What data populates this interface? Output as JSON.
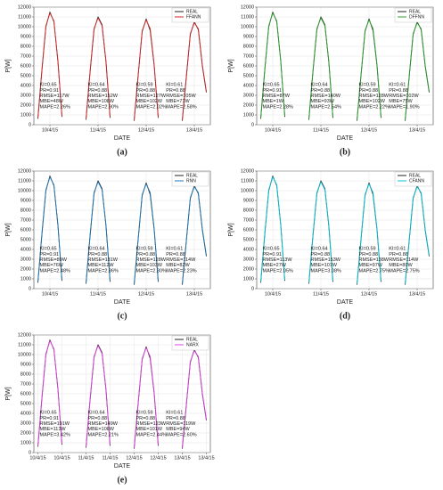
{
  "chart_data": [
    {
      "type": "line",
      "panel_label": "(a)",
      "x_label": "DATE",
      "y_label": "P[W]",
      "x": [
        6,
        8,
        10,
        12,
        14,
        16,
        18,
        21,
        30,
        32,
        34,
        36,
        38,
        40,
        42,
        45,
        54,
        56,
        58,
        60,
        62,
        64,
        66,
        69,
        78,
        80,
        82,
        84,
        86,
        88,
        90
      ],
      "series": [
        {
          "name": "REAL",
          "color": "#222222",
          "values": [
            600,
            5500,
            10000,
            11500,
            10500,
            6500,
            800,
            null,
            500,
            5300,
            9700,
            11000,
            10200,
            6300,
            700,
            null,
            400,
            5000,
            9500,
            10800,
            9600,
            6000,
            700,
            null,
            400,
            4800,
            9200,
            10500,
            9700,
            6000,
            3300
          ]
        },
        {
          "name": "FFANN",
          "color": "#d62728",
          "values": [
            700,
            5600,
            10100,
            11400,
            10600,
            6400,
            900,
            null,
            600,
            5400,
            9800,
            10900,
            10100,
            6400,
            800,
            null,
            500,
            5100,
            9600,
            10700,
            9800,
            6100,
            800,
            null,
            500,
            4900,
            9300,
            10400,
            9800,
            6100,
            3400
          ]
        }
      ],
      "xlim": [
        4,
        92
      ],
      "ylim": [
        0,
        12000
      ],
      "xticks": [
        {
          "value": 12,
          "label": "10/4/15"
        },
        {
          "value": 36,
          "label": "11/4/15"
        },
        {
          "value": 60,
          "label": "12/4/15"
        },
        {
          "value": 84,
          "label": "13/4/15"
        }
      ],
      "yticks": [
        0,
        1000,
        2000,
        3000,
        4000,
        5000,
        6000,
        7000,
        8000,
        9000,
        10000,
        11000,
        12000
      ],
      "grid": true,
      "legend": "upper right",
      "annotations": [
        [
          "KI=0.65",
          "PR=0.91",
          "RMSE=117W",
          "MBE=48W",
          "MAPE=2.26%"
        ],
        [
          "KI=0.64",
          "PR=0.88",
          "RMSE=152W",
          "MBE=108W",
          "MAPE=2.90%"
        ],
        [
          "KI=0.59",
          "PR=0.88",
          "RMSE=127W",
          "MBE=102W",
          "MAPE=2.02%"
        ],
        [
          "KI=0.61",
          "PR=0.88",
          "RMSE=105W",
          "MBE=71W",
          "MAPE=2.58%"
        ]
      ]
    },
    {
      "type": "line",
      "panel_label": "(b)",
      "x_label": "DATE",
      "y_label": "P[W]",
      "x": [
        6,
        8,
        10,
        12,
        14,
        16,
        18,
        21,
        30,
        32,
        34,
        36,
        38,
        40,
        42,
        45,
        54,
        56,
        58,
        60,
        62,
        64,
        66,
        69,
        78,
        80,
        82,
        84,
        86,
        88,
        90
      ],
      "series": [
        {
          "name": "REAL",
          "color": "#222222",
          "values": [
            600,
            5500,
            10000,
            11500,
            10500,
            6500,
            800,
            null,
            500,
            5300,
            9700,
            11000,
            10200,
            6300,
            700,
            null,
            400,
            5000,
            9500,
            10800,
            9600,
            6000,
            700,
            null,
            400,
            4800,
            9200,
            10500,
            9700,
            6000,
            3300
          ]
        },
        {
          "name": "DFFNN",
          "color": "#2ca02c",
          "values": [
            700,
            5600,
            10100,
            11400,
            10600,
            6400,
            900,
            null,
            600,
            5400,
            9800,
            10900,
            10100,
            6400,
            800,
            null,
            500,
            5100,
            9600,
            10700,
            9800,
            6100,
            800,
            null,
            500,
            4900,
            9300,
            10400,
            9800,
            6100,
            3400
          ]
        }
      ],
      "xlim": [
        4,
        92
      ],
      "ylim": [
        0,
        12000
      ],
      "xticks": [
        {
          "value": 12,
          "label": "10/4/15"
        },
        {
          "value": 36,
          "label": "11/4/15"
        },
        {
          "value": 60,
          "label": "12/4/15"
        },
        {
          "value": 84,
          "label": "13/4/15"
        }
      ],
      "yticks": [
        0,
        1000,
        2000,
        3000,
        4000,
        5000,
        6000,
        7000,
        8000,
        9000,
        10000,
        11000,
        12000
      ],
      "grid": true,
      "legend": "upper right",
      "annotations": [
        [
          "KI=0.65",
          "PR=0.91",
          "RMSE=87W",
          "MBE=1W",
          "MAPE=2.28%"
        ],
        [
          "KI=0.64",
          "PR=0.88",
          "RMSE=140W",
          "MBE=93W",
          "MAPE=2.54%"
        ],
        [
          "KI=0.59",
          "PR=0.88",
          "RMSE=128W",
          "MBE=102W",
          "MAPE=2.22%"
        ],
        [
          "KI=0.61",
          "PR=0.88",
          "RMSE=102W",
          "MBE=75W",
          "MAPE=1.90%"
        ]
      ]
    },
    {
      "type": "line",
      "panel_label": "(c)",
      "x_label": "DATE",
      "y_label": "P[W]",
      "x": [
        6,
        8,
        10,
        12,
        14,
        16,
        18,
        21,
        30,
        32,
        34,
        36,
        38,
        40,
        42,
        45,
        54,
        56,
        58,
        60,
        62,
        64,
        66,
        69,
        78,
        80,
        82,
        84,
        86,
        88,
        90
      ],
      "series": [
        {
          "name": "REAL",
          "color": "#222222",
          "values": [
            600,
            5500,
            10000,
            11500,
            10500,
            6500,
            800,
            null,
            500,
            5300,
            9700,
            11000,
            10200,
            6300,
            700,
            null,
            400,
            5000,
            9500,
            10800,
            9600,
            6000,
            700,
            null,
            400,
            4800,
            9200,
            10500,
            9700,
            6000,
            3300
          ]
        },
        {
          "name": "RNN",
          "color": "#1f77b4",
          "values": [
            700,
            5600,
            10100,
            11400,
            10600,
            6400,
            900,
            null,
            600,
            5400,
            9800,
            10900,
            10100,
            6400,
            800,
            null,
            500,
            5100,
            9600,
            10700,
            9800,
            6100,
            800,
            null,
            500,
            4900,
            9300,
            10400,
            9800,
            6100,
            3400
          ]
        }
      ],
      "xlim": [
        4,
        92
      ],
      "ylim": [
        0,
        12000
      ],
      "xticks": [
        {
          "value": 12,
          "label": "10/4/15"
        },
        {
          "value": 36,
          "label": "11/4/15"
        },
        {
          "value": 60,
          "label": "12/4/15"
        },
        {
          "value": 84,
          "label": "13/4/15"
        }
      ],
      "yticks": [
        0,
        1000,
        2000,
        3000,
        4000,
        5000,
        6000,
        7000,
        8000,
        9000,
        10000,
        11000,
        12000
      ],
      "grid": true,
      "legend": "upper right",
      "annotations": [
        [
          "KI=0.65",
          "PR=0.91",
          "RMSE=89W",
          "MBE=76W",
          "MAPE=2.48%"
        ],
        [
          "KI=0.64",
          "PR=0.88",
          "RMSE=131W",
          "MBE=112W",
          "MAPE=2.86%"
        ],
        [
          "KI=0.59",
          "PR=0.88",
          "RMSE=128W",
          "MBE=103W",
          "MAPE=2.30%"
        ],
        [
          "KI=0.61",
          "PR=0.88",
          "RMSE=114W",
          "MBE=82W",
          "MAPE=2.23%"
        ]
      ]
    },
    {
      "type": "line",
      "panel_label": "(d)",
      "x_label": "DATE",
      "y_label": "P[W]",
      "x": [
        6,
        8,
        10,
        12,
        14,
        16,
        18,
        21,
        30,
        32,
        34,
        36,
        38,
        40,
        42,
        45,
        54,
        56,
        58,
        60,
        62,
        64,
        66,
        69,
        78,
        80,
        82,
        84,
        86,
        88,
        90
      ],
      "series": [
        {
          "name": "REAL",
          "color": "#222222",
          "values": [
            600,
            5500,
            10000,
            11500,
            10500,
            6500,
            800,
            null,
            500,
            5300,
            9700,
            11000,
            10200,
            6300,
            700,
            null,
            400,
            5000,
            9500,
            10800,
            9600,
            6000,
            700,
            null,
            400,
            4800,
            9200,
            10500,
            9700,
            6000,
            3300
          ]
        },
        {
          "name": "CFANN",
          "color": "#00c4d6",
          "values": [
            700,
            5600,
            10100,
            11400,
            10600,
            6400,
            900,
            null,
            600,
            5400,
            9800,
            10900,
            10100,
            6400,
            800,
            null,
            500,
            5100,
            9600,
            10700,
            9800,
            6100,
            800,
            null,
            500,
            4900,
            9300,
            10400,
            9800,
            6100,
            3400
          ]
        }
      ],
      "xlim": [
        4,
        92
      ],
      "ylim": [
        0,
        12000
      ],
      "xticks": [
        {
          "value": 12,
          "label": "10/4/15"
        },
        {
          "value": 36,
          "label": "11/4/15"
        },
        {
          "value": 60,
          "label": "12/4/15"
        },
        {
          "value": 84,
          "label": "13/4/15"
        }
      ],
      "yticks": [
        0,
        1000,
        2000,
        3000,
        4000,
        5000,
        6000,
        7000,
        8000,
        9000,
        10000,
        11000,
        12000
      ],
      "grid": true,
      "legend": "upper right",
      "annotations": [
        [
          "KI=0.65",
          "PR=0.91",
          "RMSE=113W",
          "MBE=27W",
          "MAPE=2.05%"
        ],
        [
          "KI=0.64",
          "PR=0.88",
          "RMSE=153W",
          "MBE=107W",
          "MAPE=3.08%"
        ],
        [
          "KI=0.59",
          "PR=0.88",
          "RMSE=138W",
          "MBE=97W",
          "MAPE=2.75%"
        ],
        [
          "KI=0.61",
          "PR=0.88",
          "RMSE=114W",
          "MBE=80W",
          "MAPE=2.75%"
        ]
      ]
    },
    {
      "type": "line",
      "panel_label": "(e)",
      "x_label": "DATE",
      "y_label": "P[W]",
      "x": [
        6,
        8,
        10,
        12,
        14,
        16,
        18,
        21,
        30,
        32,
        34,
        36,
        38,
        40,
        42,
        45,
        54,
        56,
        58,
        60,
        62,
        64,
        66,
        69,
        78,
        80,
        82,
        84,
        86,
        88,
        90
      ],
      "series": [
        {
          "name": "REAL",
          "color": "#222222",
          "values": [
            600,
            5500,
            10000,
            11500,
            10500,
            6500,
            800,
            null,
            500,
            5300,
            9700,
            11000,
            10200,
            6300,
            700,
            null,
            400,
            5000,
            9500,
            10800,
            9600,
            6000,
            700,
            null,
            400,
            4800,
            9200,
            10500,
            9700,
            6000,
            3300
          ]
        },
        {
          "name": "NARX",
          "color": "#e040e0",
          "values": [
            700,
            5600,
            10100,
            11400,
            10600,
            6400,
            900,
            null,
            600,
            5400,
            9800,
            10900,
            10100,
            6400,
            800,
            null,
            500,
            5100,
            9600,
            10700,
            9800,
            6100,
            800,
            null,
            500,
            4900,
            9300,
            10400,
            9800,
            6100,
            3400
          ]
        }
      ],
      "xlim": [
        4,
        92
      ],
      "ylim": [
        0,
        12000
      ],
      "xticks": [
        {
          "value": 6,
          "label": "10/4/15"
        },
        {
          "value": 18,
          "label": "10/4/15"
        },
        {
          "value": 30,
          "label": "11/4/15"
        },
        {
          "value": 42,
          "label": "11/4/15"
        },
        {
          "value": 54,
          "label": "12/4/15"
        },
        {
          "value": 66,
          "label": "12/4/15"
        },
        {
          "value": 78,
          "label": "13/4/15"
        },
        {
          "value": 90,
          "label": "13/4/15"
        }
      ],
      "yticks": [
        0,
        1000,
        2000,
        3000,
        4000,
        5000,
        6000,
        7000,
        8000,
        9000,
        10000,
        11000,
        12000
      ],
      "grid": true,
      "legend": "upper right",
      "annotations": [
        [
          "KI=0.65",
          "PR=0.91",
          "RMSE=191W",
          "MBE=113W",
          "MAPE=3.42%"
        ],
        [
          "KI=0.64",
          "PR=0.88",
          "RMSE=149W",
          "MBE=108W",
          "MAPE=2.21%"
        ],
        [
          "KI=0.59",
          "PR=0.88",
          "RMSE=123W",
          "MBE=101W",
          "MAPE=2.44%"
        ],
        [
          "KI=0.61",
          "PR=0.88",
          "RMSE=119W",
          "MBE=94W",
          "MAPE=2.60%"
        ]
      ]
    }
  ]
}
